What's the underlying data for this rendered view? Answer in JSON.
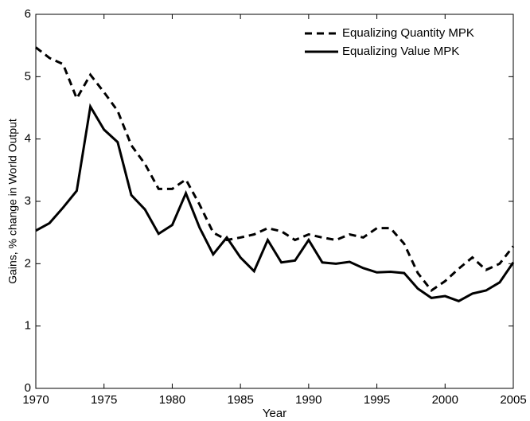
{
  "chart_data": {
    "type": "line",
    "xlabel": "Year",
    "ylabel": "Gains, % change in World Output",
    "x": [
      1970,
      1971,
      1972,
      1973,
      1974,
      1975,
      1976,
      1977,
      1978,
      1979,
      1980,
      1981,
      1982,
      1983,
      1984,
      1985,
      1986,
      1987,
      1988,
      1989,
      1990,
      1991,
      1992,
      1993,
      1994,
      1995,
      1996,
      1997,
      1998,
      1999,
      2000,
      2001,
      2002,
      2003,
      2004,
      2005
    ],
    "series": [
      {
        "name": "Equalizing Quantity MPK",
        "color": "#000000",
        "style": "dashed",
        "values": [
          5.47,
          5.3,
          5.2,
          4.65,
          5.03,
          4.75,
          4.45,
          3.9,
          3.6,
          3.2,
          3.2,
          3.35,
          2.95,
          2.5,
          2.38,
          2.42,
          2.47,
          2.57,
          2.52,
          2.38,
          2.47,
          2.42,
          2.38,
          2.47,
          2.42,
          2.57,
          2.57,
          2.32,
          1.85,
          1.57,
          1.72,
          1.92,
          2.1,
          1.9,
          2.0,
          2.28
        ]
      },
      {
        "name": "Equalizing Value MPK",
        "color": "#000000",
        "style": "solid",
        "values": [
          2.53,
          2.65,
          2.9,
          3.17,
          4.52,
          4.15,
          3.95,
          3.1,
          2.87,
          2.48,
          2.62,
          3.13,
          2.58,
          2.15,
          2.42,
          2.1,
          1.88,
          2.38,
          2.02,
          2.05,
          2.38,
          2.02,
          2.0,
          2.03,
          1.93,
          1.86,
          1.87,
          1.85,
          1.6,
          1.45,
          1.48,
          1.4,
          1.52,
          1.57,
          1.7,
          2.02
        ]
      }
    ],
    "xlim": [
      1970,
      2005
    ],
    "xticks": [
      1970,
      1975,
      1980,
      1985,
      1990,
      1995,
      2000,
      2005
    ],
    "ylim": [
      0,
      6
    ],
    "yticks": [
      0,
      1,
      2,
      3,
      4,
      5,
      6
    ],
    "grid": false,
    "legend": "upper-right"
  }
}
